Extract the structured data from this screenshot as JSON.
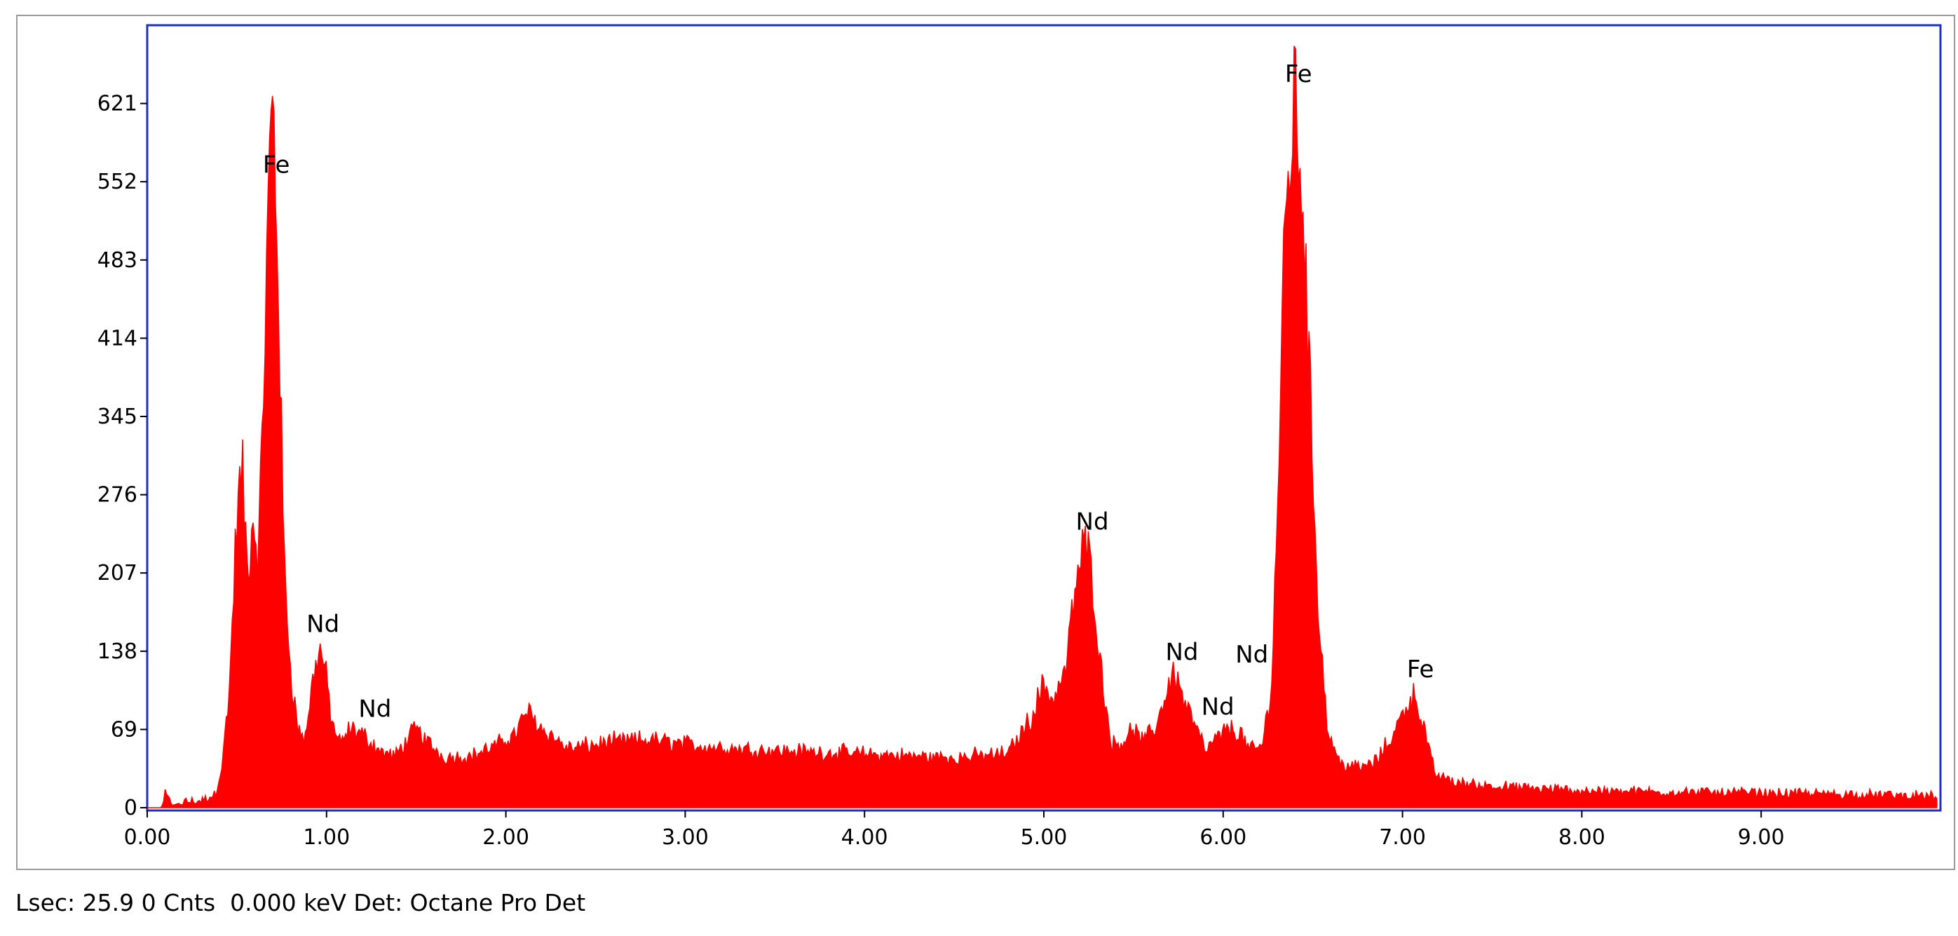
{
  "chart_data": {
    "type": "area",
    "title": "",
    "xlabel": "",
    "ylabel": "",
    "xlim": [
      0,
      10
    ],
    "ylim": [
      0,
      690
    ],
    "x_ticks": [
      {
        "value": 0,
        "label": "0.00"
      },
      {
        "value": 1,
        "label": "1.00"
      },
      {
        "value": 2,
        "label": "2.00"
      },
      {
        "value": 3,
        "label": "3.00"
      },
      {
        "value": 4,
        "label": "4.00"
      },
      {
        "value": 5,
        "label": "5.00"
      },
      {
        "value": 6,
        "label": "6.00"
      },
      {
        "value": 7,
        "label": "7.00"
      },
      {
        "value": 8,
        "label": "8.00"
      },
      {
        "value": 9,
        "label": "9.00"
      }
    ],
    "y_ticks": [
      {
        "value": 0,
        "label": "0"
      },
      {
        "value": 69,
        "label": "69"
      },
      {
        "value": 138,
        "label": "138"
      },
      {
        "value": 207,
        "label": "207"
      },
      {
        "value": 276,
        "label": "276"
      },
      {
        "value": 345,
        "label": "345"
      },
      {
        "value": 414,
        "label": "414"
      },
      {
        "value": 483,
        "label": "483"
      },
      {
        "value": 552,
        "label": "552"
      },
      {
        "value": 621,
        "label": "621"
      }
    ],
    "series_color": "#ff0000",
    "frame_color": "#1f2fbf",
    "grid": false,
    "spectrum": [
      [
        0.0,
        0
      ],
      [
        0.08,
        0
      ],
      [
        0.1,
        12
      ],
      [
        0.14,
        2
      ],
      [
        0.2,
        5
      ],
      [
        0.3,
        6
      ],
      [
        0.38,
        12
      ],
      [
        0.42,
        40
      ],
      [
        0.46,
        110
      ],
      [
        0.5,
        260
      ],
      [
        0.53,
        300
      ],
      [
        0.56,
        205
      ],
      [
        0.59,
        260
      ],
      [
        0.62,
        220
      ],
      [
        0.65,
        380
      ],
      [
        0.68,
        560
      ],
      [
        0.7,
        625
      ],
      [
        0.73,
        480
      ],
      [
        0.76,
        230
      ],
      [
        0.8,
        120
      ],
      [
        0.84,
        70
      ],
      [
        0.88,
        60
      ],
      [
        0.93,
        120
      ],
      [
        0.96,
        140
      ],
      [
        0.99,
        125
      ],
      [
        1.03,
        75
      ],
      [
        1.08,
        55
      ],
      [
        1.13,
        70
      ],
      [
        1.2,
        65
      ],
      [
        1.3,
        50
      ],
      [
        1.38,
        45
      ],
      [
        1.45,
        60
      ],
      [
        1.5,
        70
      ],
      [
        1.55,
        60
      ],
      [
        1.65,
        45
      ],
      [
        1.8,
        45
      ],
      [
        1.95,
        55
      ],
      [
        2.05,
        65
      ],
      [
        2.12,
        85
      ],
      [
        2.2,
        70
      ],
      [
        2.35,
        52
      ],
      [
        2.6,
        58
      ],
      [
        2.8,
        60
      ],
      [
        3.0,
        56
      ],
      [
        3.3,
        52
      ],
      [
        3.6,
        50
      ],
      [
        3.9,
        48
      ],
      [
        4.2,
        46
      ],
      [
        4.5,
        44
      ],
      [
        4.8,
        48
      ],
      [
        4.93,
        80
      ],
      [
        5.0,
        110
      ],
      [
        5.05,
        95
      ],
      [
        5.12,
        120
      ],
      [
        5.18,
        200
      ],
      [
        5.23,
        235
      ],
      [
        5.27,
        205
      ],
      [
        5.32,
        120
      ],
      [
        5.38,
        55
      ],
      [
        5.45,
        60
      ],
      [
        5.5,
        70
      ],
      [
        5.55,
        58
      ],
      [
        5.62,
        70
      ],
      [
        5.7,
        110
      ],
      [
        5.73,
        120
      ],
      [
        5.78,
        95
      ],
      [
        5.85,
        70
      ],
      [
        5.9,
        50
      ],
      [
        5.96,
        60
      ],
      [
        6.03,
        70
      ],
      [
        6.1,
        65
      ],
      [
        6.15,
        50
      ],
      [
        6.22,
        55
      ],
      [
        6.27,
        110
      ],
      [
        6.3,
        250
      ],
      [
        6.34,
        480
      ],
      [
        6.38,
        600
      ],
      [
        6.4,
        615
      ],
      [
        6.44,
        560
      ],
      [
        6.48,
        380
      ],
      [
        6.53,
        180
      ],
      [
        6.58,
        70
      ],
      [
        6.65,
        40
      ],
      [
        6.75,
        35
      ],
      [
        6.85,
        40
      ],
      [
        6.95,
        65
      ],
      [
        7.02,
        90
      ],
      [
        7.07,
        100
      ],
      [
        7.12,
        70
      ],
      [
        7.18,
        30
      ],
      [
        7.3,
        22
      ],
      [
        7.6,
        18
      ],
      [
        8.0,
        15
      ],
      [
        8.5,
        14
      ],
      [
        9.0,
        13
      ],
      [
        9.5,
        12
      ],
      [
        9.98,
        10
      ]
    ],
    "annotations": [
      {
        "text": "Fe",
        "x": 0.72,
        "y": 560
      },
      {
        "text": "Nd",
        "x": 0.98,
        "y": 155
      },
      {
        "text": "Nd",
        "x": 1.27,
        "y": 80
      },
      {
        "text": "Nd",
        "x": 5.27,
        "y": 245
      },
      {
        "text": "Nd",
        "x": 5.77,
        "y": 130
      },
      {
        "text": "Nd",
        "x": 5.97,
        "y": 82
      },
      {
        "text": "Nd",
        "x": 6.16,
        "y": 128
      },
      {
        "text": "Fe",
        "x": 6.42,
        "y": 640
      },
      {
        "text": "Fe",
        "x": 7.1,
        "y": 115
      }
    ]
  },
  "status": {
    "line": "Lsec: 25.9 0 Cnts  0.000 keV Det: Octane Pro Det"
  }
}
